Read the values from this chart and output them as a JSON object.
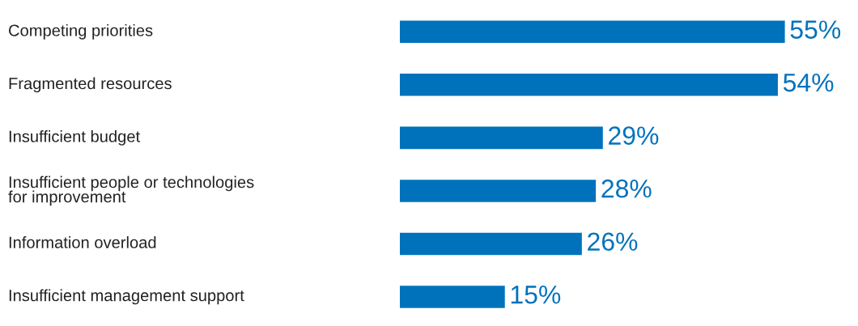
{
  "chart_data": {
    "type": "bar",
    "orientation": "horizontal",
    "categories": [
      "Competing priorities",
      "Fragmented resources",
      "Insufficient budget",
      "Insufficient people or technologies\nfor improvement",
      "Information overload",
      "Insufficient management support"
    ],
    "values": [
      55,
      54,
      29,
      28,
      26,
      15
    ],
    "value_labels": [
      "55%",
      "54%",
      "29%",
      "28%",
      "26%",
      "15%"
    ],
    "color": "#0072bc"
  }
}
